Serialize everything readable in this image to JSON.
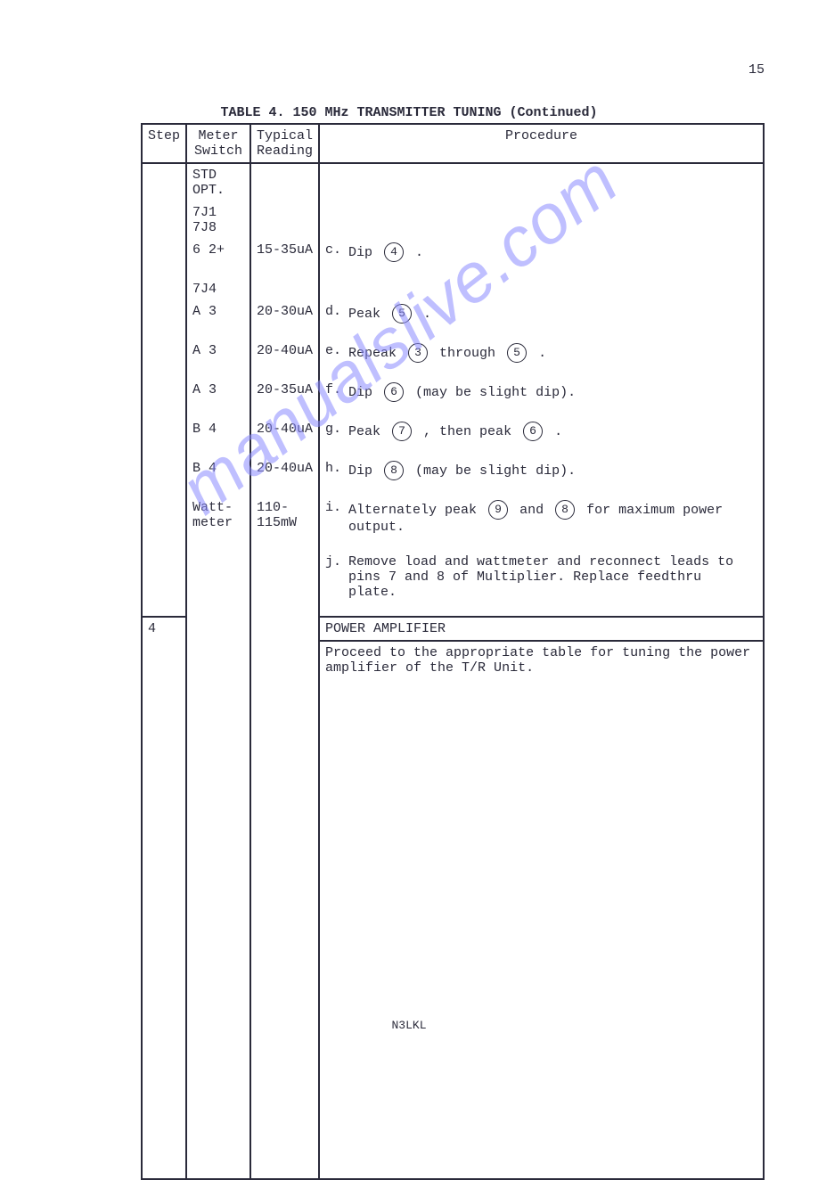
{
  "page_number": "15",
  "caption": "TABLE 4. 150 MHz TRANSMITTER TUNING (Continued)",
  "headers": {
    "step": "Step",
    "meter": "Meter\nSwitch",
    "reading": "Typical\nReading",
    "procedure": "Procedure"
  },
  "meter_header_row": "STD OPT.",
  "rows": [
    {
      "step": "",
      "meter": "7J1 7J8",
      "reading": "",
      "proc_label": "",
      "proc_pre": "",
      "circ1": "",
      "proc_mid": "",
      "circ2": "",
      "proc_post": ""
    },
    {
      "step": "",
      "meter": " 6   2+",
      "reading": "15-35uA",
      "proc_label": "c.",
      "proc_pre": "Dip ",
      "circ1": "4",
      "proc_mid": " .",
      "circ2": "",
      "proc_post": ""
    },
    {
      "step": "",
      "meter": "7J4",
      "reading": "",
      "proc_label": "",
      "proc_pre": "",
      "circ1": "",
      "proc_mid": "",
      "circ2": "",
      "proc_post": ""
    },
    {
      "step": "",
      "meter": " A   3",
      "reading": "20-30uA",
      "proc_label": "d.",
      "proc_pre": "Peak ",
      "circ1": "5",
      "proc_mid": " .",
      "circ2": "",
      "proc_post": ""
    },
    {
      "step": "",
      "meter": " A   3",
      "reading": "20-40uA",
      "proc_label": "e.",
      "proc_pre": "Repeak ",
      "circ1": "3",
      "proc_mid": " through ",
      "circ2": "5",
      "proc_post": " ."
    },
    {
      "step": "",
      "meter": " A   3",
      "reading": "20-35uA",
      "proc_label": "f.",
      "proc_pre": "Dip ",
      "circ1": "6",
      "proc_mid": " (may be slight dip).",
      "circ2": "",
      "proc_post": ""
    },
    {
      "step": "",
      "meter": " B   4",
      "reading": "20-40uA",
      "proc_label": "g.",
      "proc_pre": "Peak ",
      "circ1": "7",
      "proc_mid": " , then peak ",
      "circ2": "6",
      "proc_post": " ."
    },
    {
      "step": "",
      "meter": " B   4",
      "reading": "20-40uA",
      "proc_label": "h.",
      "proc_pre": "Dip ",
      "circ1": "8",
      "proc_mid": " (may be slight dip).",
      "circ2": "",
      "proc_post": ""
    },
    {
      "step": "",
      "meter": "Watt-\n  meter",
      "reading": "110-\n  115mW",
      "proc_label": "i.",
      "proc_pre": "Alternately peak ",
      "circ1": "9",
      "proc_mid": " and ",
      "circ2": "8",
      "proc_post": " for maximum power output."
    },
    {
      "step": "",
      "meter": "",
      "reading": "",
      "proc_label": "j.",
      "proc_pre": "Remove load and wattmeter and reconnect leads to pins 7 and 8 of Multiplier.  Replace feedthru plate.",
      "circ1": "",
      "proc_mid": "",
      "circ2": "",
      "proc_post": ""
    }
  ],
  "section": {
    "step": "4",
    "heading": "POWER AMPLIFIER",
    "body": "Proceed to the appropriate table for tuning the power amplifier of the T/R Unit."
  },
  "watermark": "manualslive.com",
  "footer": "N3LKL",
  "colors": {
    "text": "#2a2a3a",
    "border": "#2a2a3a",
    "background": "#ffffff",
    "watermark": "#8b8bff"
  },
  "font": {
    "family": "Courier New",
    "size_pt": 11
  }
}
